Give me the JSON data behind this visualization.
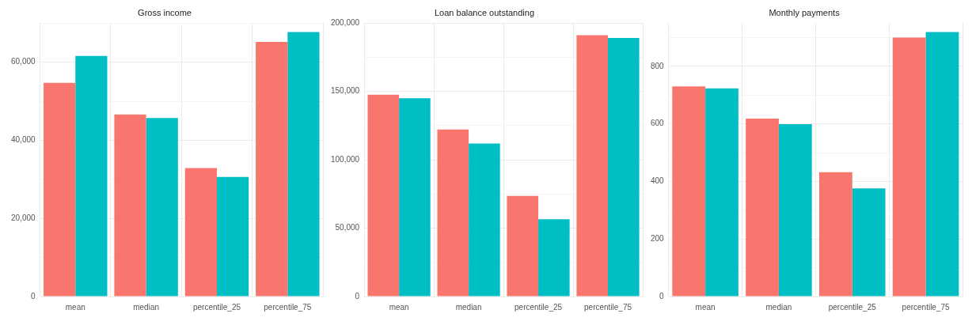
{
  "chart_data": [
    {
      "type": "bar",
      "title": "Gross income",
      "categories": [
        "mean",
        "median",
        "percentile_25",
        "percentile_75"
      ],
      "series": [
        {
          "color": "#f8766d",
          "values": [
            54700,
            46600,
            32900,
            65200
          ]
        },
        {
          "color": "#00bfc4",
          "values": [
            61600,
            45700,
            30600,
            67700
          ]
        }
      ],
      "ylim": [
        0,
        70000
      ],
      "yticks": [
        {
          "value": 0,
          "label": "0"
        },
        {
          "value": 10000,
          "label": null
        },
        {
          "value": 20000,
          "label": "20,000"
        },
        {
          "value": 30000,
          "label": null
        },
        {
          "value": 40000,
          "label": "40,000"
        },
        {
          "value": 50000,
          "label": null
        },
        {
          "value": 60000,
          "label": "60,000"
        },
        {
          "value": 70000,
          "label": null
        }
      ],
      "grid": true,
      "legend": false
    },
    {
      "type": "bar",
      "title": "Loan balance outstanding",
      "categories": [
        "mean",
        "median",
        "percentile_25",
        "percentile_75"
      ],
      "series": [
        {
          "color": "#f8766d",
          "values": [
            147700,
            122200,
            73600,
            191200
          ]
        },
        {
          "color": "#00bfc4",
          "values": [
            145000,
            111900,
            56500,
            189100
          ]
        }
      ],
      "ylim": [
        0,
        200000
      ],
      "yticks": [
        {
          "value": 0,
          "label": "0"
        },
        {
          "value": 25000,
          "label": null
        },
        {
          "value": 50000,
          "label": "50,000"
        },
        {
          "value": 75000,
          "label": null
        },
        {
          "value": 100000,
          "label": "100,000"
        },
        {
          "value": 125000,
          "label": null
        },
        {
          "value": 150000,
          "label": "150,000"
        },
        {
          "value": 175000,
          "label": null
        },
        {
          "value": 200000,
          "label": "200,000"
        }
      ],
      "grid": true,
      "legend": false
    },
    {
      "type": "bar",
      "title": "Monthly payments",
      "categories": [
        "mean",
        "median",
        "percentile_25",
        "percentile_75"
      ],
      "series": [
        {
          "color": "#f8766d",
          "values": [
            730,
            618,
            432,
            900
          ]
        },
        {
          "color": "#00bfc4",
          "values": [
            723,
            599,
            376,
            919
          ]
        }
      ],
      "ylim": [
        0,
        950
      ],
      "yticks": [
        {
          "value": 0,
          "label": "0"
        },
        {
          "value": 100,
          "label": null
        },
        {
          "value": 200,
          "label": "200"
        },
        {
          "value": 300,
          "label": null
        },
        {
          "value": 400,
          "label": "400"
        },
        {
          "value": 500,
          "label": null
        },
        {
          "value": 600,
          "label": "600"
        },
        {
          "value": 700,
          "label": null
        },
        {
          "value": 800,
          "label": "800"
        },
        {
          "value": 900,
          "label": null
        }
      ],
      "grid": true,
      "legend": false
    }
  ]
}
